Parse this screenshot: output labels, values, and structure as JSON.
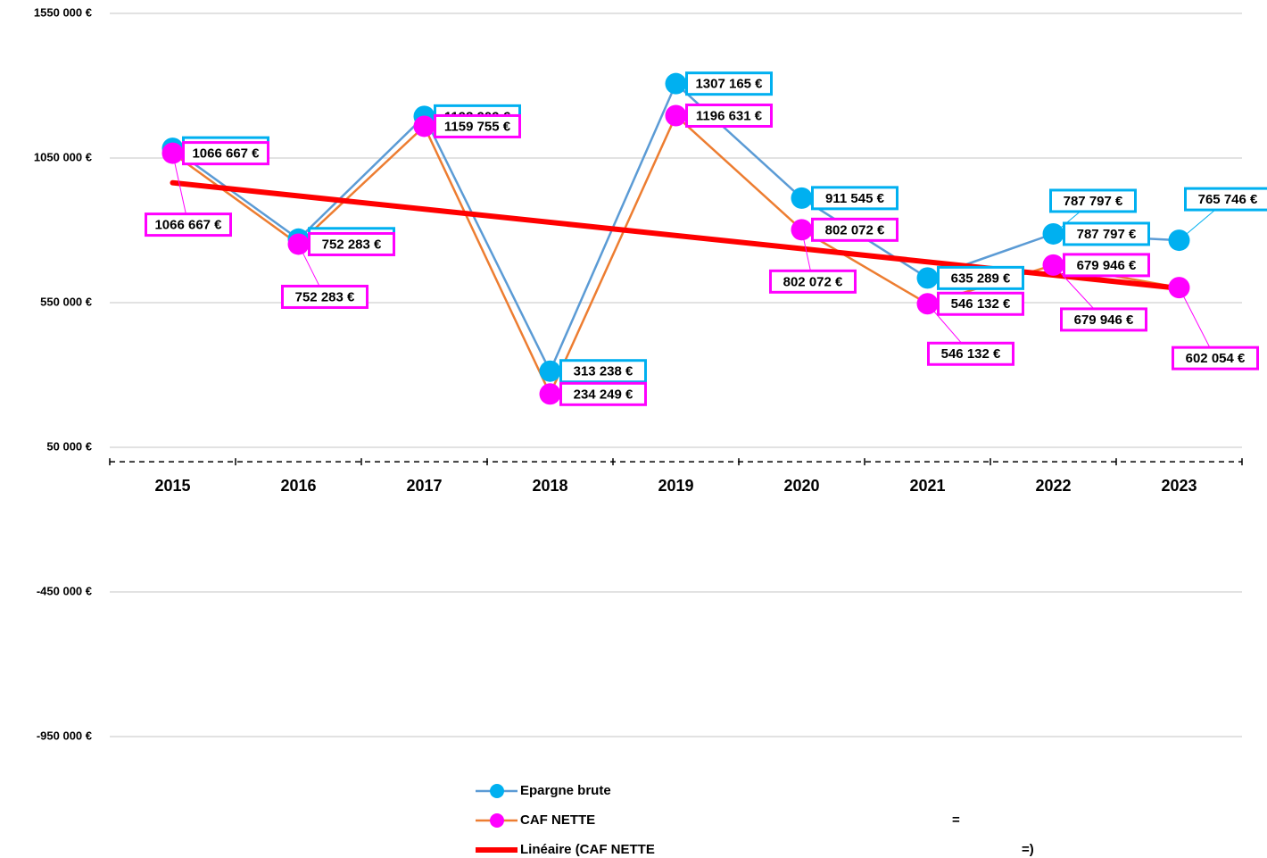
{
  "chart_data": {
    "type": "line",
    "categories": [
      "2015",
      "2016",
      "2017",
      "2018",
      "2019",
      "2020",
      "2021",
      "2022",
      "2023"
    ],
    "ylim": [
      -950000,
      1550000
    ],
    "yticks": [
      {
        "value": -950000,
        "label": "-950 000 €"
      },
      {
        "value": -450000,
        "label": "-450 000 €"
      },
      {
        "value": 50000,
        "label": "50 000 €"
      },
      {
        "value": 550000,
        "label": "550 000 €"
      },
      {
        "value": 1050000,
        "label": "1050 000 €"
      },
      {
        "value": 1550000,
        "label": "1550 000 €"
      }
    ],
    "grid": true,
    "legend": "bottom",
    "series": [
      {
        "name": "Epargne brute",
        "color": "#5b9bd5",
        "marker_color": "#00b0f0",
        "values": [
          1083519,
          769820,
          1193909,
          313238,
          1307165,
          911545,
          635289,
          787797,
          765746
        ],
        "value_labels": [
          "1083 519 €",
          "769 820 €",
          "1193 909 €",
          "313 238 €",
          "1307 165 €",
          "911 545 €",
          "635 289 €",
          "787 797 €",
          "765 746 €"
        ]
      },
      {
        "name": "CAF NETTE",
        "color": "#ed7d31",
        "marker_color": "#ff00ff",
        "values": [
          1066667,
          752283,
          1159755,
          234249,
          1196631,
          802072,
          546132,
          679946,
          602054
        ],
        "value_labels": [
          "1066 667 €",
          "752 283 €",
          "1159 755 €",
          "234 249 €",
          "1196 631 €",
          "802 072 €",
          "546 132 €",
          "679 946 €",
          "602 054 €"
        ]
      },
      {
        "name": "Linéaire (CAF NETTE",
        "color": "#ff0000",
        "trendline": "linear"
      }
    ],
    "legend_notes": [
      "=",
      "=)"
    ]
  }
}
